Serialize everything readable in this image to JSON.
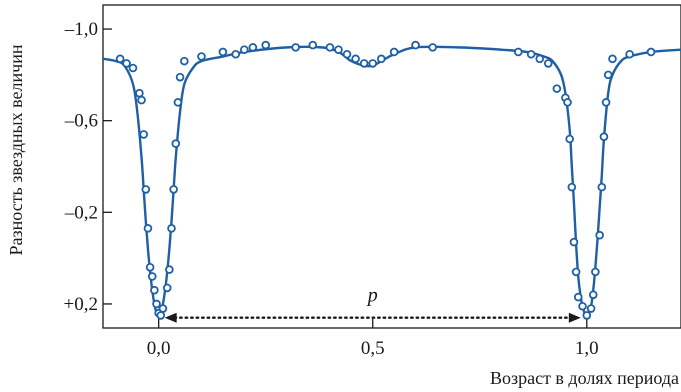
{
  "chart_data": {
    "type": "line",
    "title": "",
    "xlabel": "Возраст в долях периода",
    "ylabel": "Разность звездных величин",
    "xlim": [
      -0.13,
      1.22
    ],
    "ylim": [
      0.305,
      -1.105
    ],
    "y_inverted": true,
    "x_ticks": [
      0.0,
      0.5,
      1.0
    ],
    "x_tick_labels": [
      "0,0",
      "0,5",
      "1,0"
    ],
    "y_ticks": [
      -1.0,
      -0.6,
      -0.2,
      0.2
    ],
    "y_tick_labels": [
      "–1,0",
      "–0,6",
      "–0,2",
      "+0,2"
    ],
    "grid": false,
    "colors": {
      "curve": "#1f5fa6",
      "points": "#1f5fa6",
      "point_fill": "#ffffff",
      "axis": "#1a1a1a"
    },
    "annotation": {
      "label": "p",
      "x_start": 0.0,
      "x_end": 1.0,
      "y": 0.26,
      "style": "dotted double arrow"
    },
    "series": [
      {
        "type": "line",
        "x": [
          -0.13,
          -0.1,
          -0.08,
          -0.06,
          -0.05,
          -0.04,
          -0.035,
          -0.03,
          -0.025,
          -0.02,
          -0.015,
          -0.01,
          -0.005,
          0.0,
          0.005,
          0.01,
          0.015,
          0.02,
          0.025,
          0.03,
          0.035,
          0.04,
          0.05,
          0.06,
          0.08,
          0.1,
          0.15,
          0.2,
          0.3,
          0.38,
          0.42,
          0.45,
          0.48,
          0.5,
          0.52,
          0.55,
          0.6,
          0.7,
          0.8,
          0.86,
          0.9,
          0.92,
          0.94,
          0.95,
          0.96,
          0.965,
          0.97,
          0.975,
          0.98,
          0.985,
          0.99,
          0.995,
          1.0,
          1.005,
          1.01,
          1.015,
          1.02,
          1.025,
          1.03,
          1.035,
          1.04,
          1.05,
          1.06,
          1.08,
          1.1,
          1.15,
          1.22
        ],
        "y": [
          -0.87,
          -0.86,
          -0.84,
          -0.76,
          -0.64,
          -0.44,
          -0.3,
          -0.16,
          -0.04,
          0.06,
          0.14,
          0.2,
          0.24,
          0.255,
          0.24,
          0.2,
          0.14,
          0.06,
          -0.04,
          -0.16,
          -0.3,
          -0.44,
          -0.64,
          -0.76,
          -0.83,
          -0.86,
          -0.88,
          -0.9,
          -0.92,
          -0.92,
          -0.9,
          -0.86,
          -0.84,
          -0.84,
          -0.86,
          -0.89,
          -0.92,
          -0.92,
          -0.91,
          -0.9,
          -0.88,
          -0.86,
          -0.8,
          -0.72,
          -0.56,
          -0.4,
          -0.24,
          -0.06,
          0.08,
          0.16,
          0.21,
          0.24,
          0.25,
          0.24,
          0.21,
          0.14,
          0.04,
          -0.08,
          -0.22,
          -0.36,
          -0.52,
          -0.72,
          -0.8,
          -0.86,
          -0.88,
          -0.9,
          -0.91
        ]
      },
      {
        "type": "scatter",
        "x": [
          -0.09,
          -0.075,
          -0.06,
          -0.045,
          -0.04,
          -0.035,
          -0.03,
          -0.025,
          -0.02,
          -0.015,
          -0.01,
          -0.005,
          0.0,
          0.005,
          0.01,
          0.02,
          0.025,
          0.03,
          0.035,
          0.04,
          0.045,
          0.05,
          0.06,
          0.1,
          0.15,
          0.18,
          0.2,
          0.22,
          0.25,
          0.32,
          0.36,
          0.4,
          0.42,
          0.44,
          0.46,
          0.48,
          0.5,
          0.52,
          0.55,
          0.6,
          0.64,
          0.84,
          0.87,
          0.89,
          0.91,
          0.93,
          0.95,
          0.955,
          0.96,
          0.965,
          0.97,
          0.975,
          0.98,
          0.99,
          1.0,
          1.01,
          1.015,
          1.02,
          1.03,
          1.035,
          1.04,
          1.045,
          1.05,
          1.06,
          1.1,
          1.15
        ],
        "y": [
          -0.87,
          -0.85,
          -0.83,
          -0.72,
          -0.69,
          -0.54,
          -0.3,
          -0.13,
          0.04,
          0.08,
          0.14,
          0.2,
          0.24,
          0.25,
          0.22,
          0.13,
          0.05,
          -0.13,
          -0.3,
          -0.5,
          -0.68,
          -0.79,
          -0.86,
          -0.88,
          -0.9,
          -0.89,
          -0.91,
          -0.92,
          -0.93,
          -0.92,
          -0.93,
          -0.92,
          -0.91,
          -0.89,
          -0.87,
          -0.85,
          -0.85,
          -0.87,
          -0.9,
          -0.93,
          -0.92,
          -0.9,
          -0.89,
          -0.87,
          -0.85,
          -0.74,
          -0.7,
          -0.68,
          -0.52,
          -0.31,
          -0.07,
          0.06,
          0.17,
          0.21,
          0.25,
          0.22,
          0.16,
          0.06,
          -0.1,
          -0.31,
          -0.53,
          -0.68,
          -0.8,
          -0.87,
          -0.89,
          -0.9
        ]
      }
    ]
  }
}
